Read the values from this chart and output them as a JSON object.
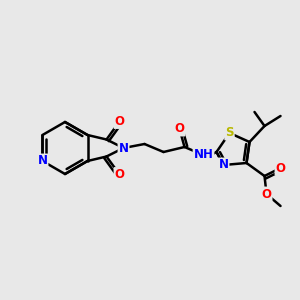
{
  "bg_color": "#e8e8e8",
  "bond_color": "#000000",
  "bond_width": 1.8,
  "atom_colors": {
    "O": "#ff0000",
    "N": "#0000ff",
    "S": "#b8b800",
    "C": "#000000",
    "H": "#4a8a8a"
  },
  "font_size": 8.5,
  "fig_width": 3.0,
  "fig_height": 3.0,
  "dpi": 100
}
